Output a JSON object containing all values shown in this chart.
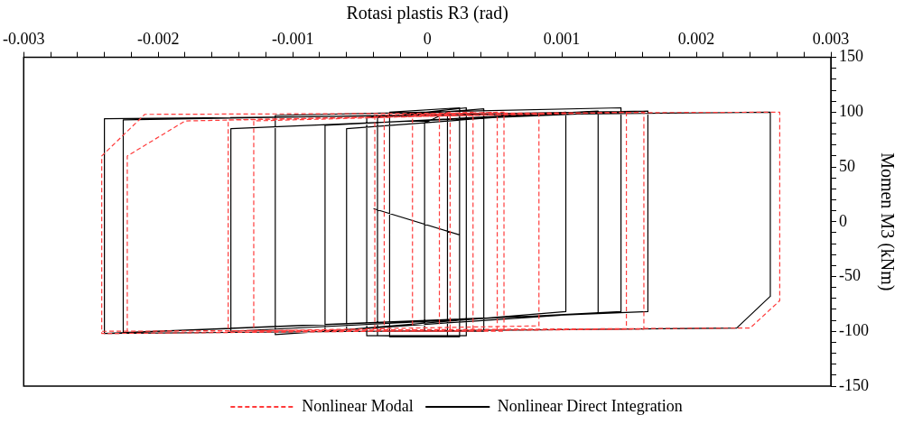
{
  "chart_data": {
    "type": "line",
    "xlabel": "Rotasi plastis R3 (rad)",
    "ylabel": "Momen M3 (kNm)",
    "xlim": [
      -0.003,
      0.003
    ],
    "xticks": [
      -0.003,
      {
        "value": -0.0028,
        "label": null
      },
      {
        "value": -0.0026,
        "label": null
      },
      {
        "value": -0.0024,
        "label": null
      },
      {
        "value": -0.0022,
        "label": null
      },
      -0.002,
      {
        "value": -0.0018,
        "label": null
      },
      {
        "value": -0.0016,
        "label": null
      },
      {
        "value": -0.0014,
        "label": null
      },
      {
        "value": -0.0012,
        "label": null
      },
      -0.001,
      {
        "value": -0.0008,
        "label": null
      },
      {
        "value": -0.0006,
        "label": null
      },
      {
        "value": -0.0004,
        "label": null
      },
      {
        "value": -0.0002,
        "label": null
      },
      0,
      {
        "value": 0.0002,
        "label": null
      },
      {
        "value": 0.0004,
        "label": null
      },
      {
        "value": 0.0006,
        "label": null
      },
      {
        "value": 0.0008,
        "label": null
      },
      0.001,
      {
        "value": 0.0012,
        "label": null
      },
      {
        "value": 0.0014,
        "label": null
      },
      {
        "value": 0.0016,
        "label": null
      },
      {
        "value": 0.0018,
        "label": null
      },
      0.002,
      {
        "value": 0.0022,
        "label": null
      },
      {
        "value": 0.0024,
        "label": null
      },
      {
        "value": 0.0026,
        "label": null
      },
      {
        "value": 0.0028,
        "label": null
      },
      0.003
    ],
    "ylim": [
      -150,
      150
    ],
    "yticks": [
      -150,
      {
        "value": -140,
        "label": null
      },
      {
        "value": -130,
        "label": null
      },
      {
        "value": -120,
        "label": null
      },
      {
        "value": -110,
        "label": null
      },
      -100,
      {
        "value": -90,
        "label": null
      },
      {
        "value": -80,
        "label": null
      },
      {
        "value": -70,
        "label": null
      },
      {
        "value": -60,
        "label": null
      },
      -50,
      {
        "value": -40,
        "label": null
      },
      {
        "value": -30,
        "label": null
      },
      {
        "value": -20,
        "label": null
      },
      {
        "value": -10,
        "label": null
      },
      0,
      {
        "value": 10,
        "label": null
      },
      {
        "value": 20,
        "label": null
      },
      {
        "value": 30,
        "label": null
      },
      {
        "value": 40,
        "label": null
      },
      50,
      {
        "value": 60,
        "label": null
      },
      {
        "value": 70,
        "label": null
      },
      {
        "value": 80,
        "label": null
      },
      {
        "value": 90,
        "label": null
      },
      100,
      {
        "value": 110,
        "label": null
      },
      {
        "value": 120,
        "label": null
      },
      {
        "value": 130,
        "label": null
      },
      {
        "value": 140,
        "label": null
      },
      150
    ],
    "grid": false,
    "legend": "bottom",
    "marker": "none",
    "series": [
      {
        "name": "Nonlinear Modal",
        "color": "#ff3b3b",
        "line_style": "dashed",
        "x": [
          9e-05,
          9e-05,
          0.00017,
          0.00017,
          -0.00011,
          -0.00011,
          0.00034,
          0.00034,
          -0.00032,
          -0.00032,
          0.00052,
          0.00052,
          -0.00039,
          -0.00039,
          0.00057,
          0.00057,
          -0.00129,
          -0.00129,
          0.00083,
          0.00083,
          -0.00148,
          -0.00148,
          0.00148,
          0.00148,
          -0.00223,
          -0.00223,
          -0.0018,
          0.00161,
          0.00161,
          -0.00242,
          -0.00242,
          -0.0021,
          0.00262,
          0.00262,
          0.0024,
          -0.00242
        ],
        "values": [
          -100,
          98,
          100,
          -100,
          -100,
          97,
          100,
          -100,
          -100,
          95,
          100,
          -100,
          -100,
          97,
          100,
          -100,
          -100,
          92,
          99,
          -95,
          -100,
          93,
          100,
          -98,
          -100,
          60,
          92,
          100,
          -98,
          -102,
          60,
          98,
          100,
          -72,
          -97,
          -100
        ]
      },
      {
        "name": "Nonlinear Direct Integration",
        "color": "#000000",
        "line_style": "solid",
        "x": [
          -0.0004,
          0.00024,
          0.00024,
          -2e-05,
          -2e-05,
          0.00015,
          0.00015,
          -0.00028,
          -0.00028,
          0.00024,
          0.00024,
          -0.00037,
          -0.00037,
          0.00029,
          0.00029,
          -0.00045,
          -0.00045,
          0.00042,
          0.00042,
          -0.0006,
          -0.0006,
          0.00103,
          0.00103,
          -0.00076,
          -0.00076,
          0.00127,
          0.00127,
          -0.00113,
          -0.00113,
          0.00144,
          0.00144,
          -0.00146,
          -0.00146,
          0.00164,
          0.00164,
          -0.00226,
          -0.00226,
          0.00164,
          0.00164,
          -0.0024,
          -0.0024,
          0.00255,
          0.00255,
          0.0023,
          -0.0024
        ],
        "values": [
          12,
          -12,
          -100,
          -100,
          90,
          100,
          -105,
          -105,
          100,
          104,
          -105,
          -104,
          95,
          104,
          -104,
          -104,
          95,
          103,
          -100,
          -100,
          85,
          100,
          -82,
          -100,
          88,
          101,
          -83,
          -103,
          97,
          104,
          -82,
          -100,
          85,
          101,
          -82,
          -101,
          93,
          101,
          -82,
          -102,
          94,
          100,
          -68,
          -97,
          -102
        ]
      }
    ]
  }
}
